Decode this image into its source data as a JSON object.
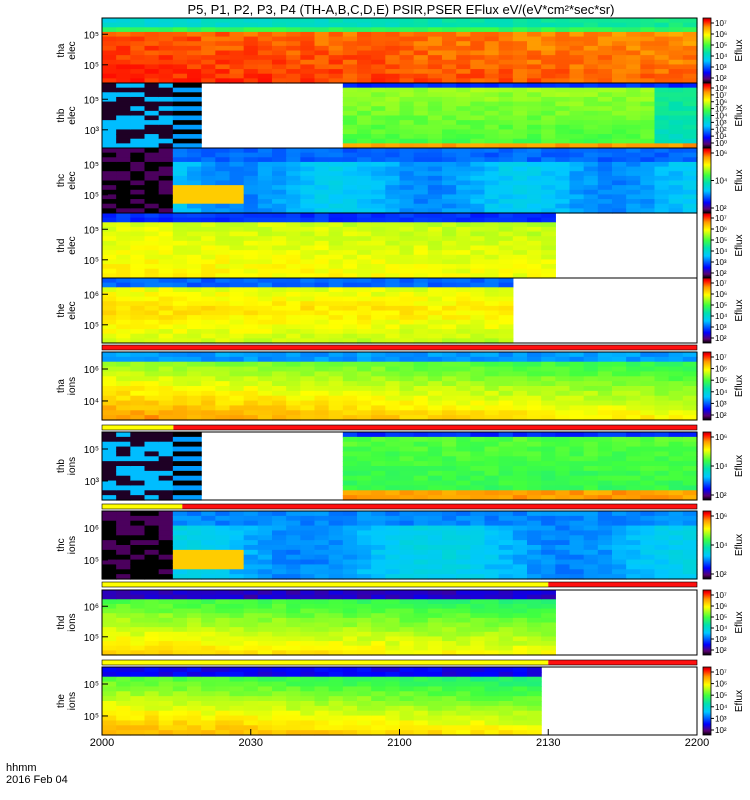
{
  "chart_data": {
    "type": "heatmap",
    "title": "P5, P1, P2, P3, P4 (TH-A,B,C,D,E) PSIR,PSER EFlux eV/(eV*cm²*sec*sr)",
    "x_ticks": [
      "2000",
      "2030",
      "2100",
      "2130",
      "2200"
    ],
    "time_label": "hhmm",
    "date_label": "2016 Feb 04",
    "colorbar_label": "Eflux",
    "panels": [
      {
        "probe": "tha",
        "species": "elec",
        "y_ticks": [
          "10⁵",
          "10⁵"
        ],
        "cb_ticks": [
          "10⁷",
          "10⁶",
          "10⁵",
          "10⁴",
          "10³",
          "10²"
        ],
        "coverage_end": 1.0
      },
      {
        "probe": "thb",
        "species": "elec",
        "y_ticks": [
          "10⁵",
          "10³"
        ],
        "cb_ticks": [
          "10⁸",
          "10⁷",
          "10⁶",
          "10⁵",
          "10⁴",
          "10³",
          "10²",
          "10¹",
          "10⁰"
        ],
        "coverage_end": 1.0
      },
      {
        "probe": "thc",
        "species": "elec",
        "y_ticks": [
          "10⁵",
          "10⁵"
        ],
        "cb_ticks": [
          "10⁶",
          "10⁴",
          "10²"
        ],
        "coverage_end": 1.0
      },
      {
        "probe": "thd",
        "species": "elec",
        "y_ticks": [
          "10⁵",
          "10⁵"
        ],
        "cb_ticks": [
          "10⁷",
          "10⁶",
          "10⁵",
          "10⁴",
          "10³",
          "10²"
        ],
        "coverage_end": 0.75
      },
      {
        "probe": "the",
        "species": "elec",
        "y_ticks": [
          "10⁶",
          "10⁵"
        ],
        "cb_ticks": [
          "10⁷",
          "10⁶",
          "10⁵",
          "10⁴",
          "10³",
          "10²"
        ],
        "coverage_end": 0.7
      },
      {
        "probe": "tha",
        "species": "ions",
        "y_ticks": [
          "10⁶",
          "10⁴"
        ],
        "cb_ticks": [
          "10⁷",
          "10⁶",
          "10⁵",
          "10⁴",
          "10³",
          "10²"
        ],
        "coverage_end": 1.0
      },
      {
        "probe": "thb",
        "species": "ions",
        "y_ticks": [
          "10⁵",
          "10³"
        ],
        "cb_ticks": [
          "10⁶",
          "10⁴",
          "10²"
        ],
        "coverage_end": 1.0
      },
      {
        "probe": "thc",
        "species": "ions",
        "y_ticks": [
          "10⁶",
          "10⁵"
        ],
        "cb_ticks": [
          "10⁶",
          "10⁴",
          "10²"
        ],
        "coverage_end": 1.0
      },
      {
        "probe": "thd",
        "species": "ions",
        "y_ticks": [
          "10⁶",
          "10⁵"
        ],
        "cb_ticks": [
          "10⁷",
          "10⁶",
          "10⁵",
          "10⁴",
          "10³",
          "10²"
        ],
        "coverage_end": 0.75
      },
      {
        "probe": "the",
        "species": "ions",
        "y_ticks": [
          "10⁵",
          "10⁵"
        ],
        "cb_ticks": [
          "10⁷",
          "10⁶",
          "10⁵",
          "10⁴",
          "10³",
          "10²"
        ],
        "coverage_end": 0.74
      }
    ],
    "mode_bars": [
      {
        "after_panel": 4,
        "yellow_end": 0.0
      },
      {
        "after_panel": 5,
        "yellow_end": 0.12
      },
      {
        "after_panel": 6,
        "yellow_end": 0.135
      },
      {
        "after_panel": 7,
        "yellow_end": 0.75
      },
      {
        "after_panel": 8,
        "yellow_end": 0.75
      }
    ],
    "colors": {
      "bar_red": "#ff1010",
      "bar_yellow": "#ffff00"
    }
  }
}
